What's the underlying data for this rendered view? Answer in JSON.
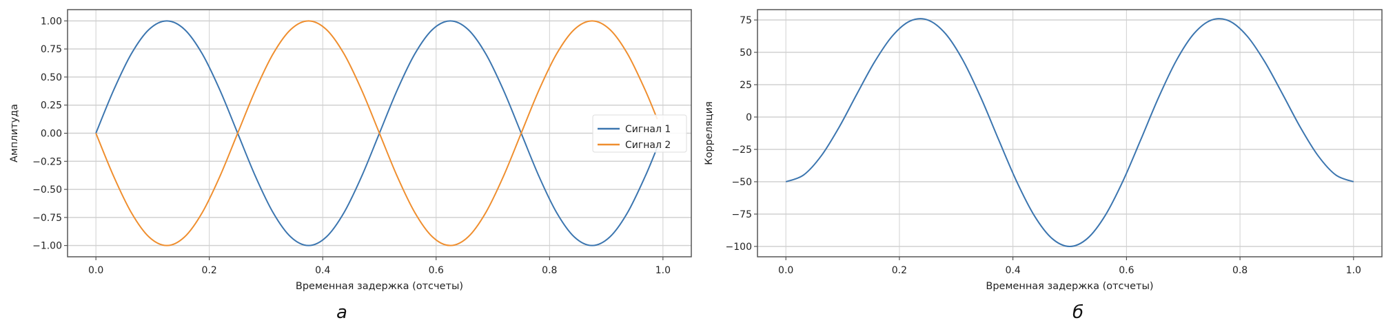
{
  "chart_data": [
    {
      "type": "line",
      "panel_label": "а",
      "xlabel": "Временная задержка (отсчеты)",
      "ylabel": "Амплитуда",
      "xlim": [
        -0.05,
        1.05
      ],
      "ylim": [
        -1.1,
        1.1
      ],
      "xticks": [
        "0.0",
        "0.2",
        "0.4",
        "0.6",
        "0.8",
        "1.0"
      ],
      "yticks": [
        "1.00",
        "0.75",
        "0.50",
        "0.25",
        "0.00",
        "−0.25",
        "−0.50",
        "−0.75",
        "−1.00"
      ],
      "grid": true,
      "legend_position": "right",
      "x": [
        0,
        0.03125,
        0.0625,
        0.09375,
        0.125,
        0.15625,
        0.1875,
        0.21875,
        0.25,
        0.28125,
        0.3125,
        0.34375,
        0.375,
        0.40625,
        0.4375,
        0.46875,
        0.5,
        0.53125,
        0.5625,
        0.59375,
        0.625,
        0.65625,
        0.6875,
        0.71875,
        0.75,
        0.78125,
        0.8125,
        0.84375,
        0.875,
        0.90625,
        0.9375,
        0.96875,
        0.99
      ],
      "series": [
        {
          "name": "Сигнал 1",
          "color": "#3b75af",
          "values": [
            0,
            0.383,
            0.707,
            0.924,
            1,
            0.924,
            0.707,
            0.383,
            0,
            -0.383,
            -0.707,
            -0.924,
            -1,
            -0.924,
            -0.707,
            -0.383,
            0,
            0.383,
            0.707,
            0.924,
            1,
            0.924,
            0.707,
            0.383,
            0,
            -0.383,
            -0.707,
            -0.924,
            -1,
            -0.924,
            -0.707,
            -0.383,
            -0.125
          ]
        },
        {
          "name": "Сигнал 2",
          "color": "#ef8e2e",
          "values": [
            0,
            -0.383,
            -0.707,
            -0.924,
            -1,
            -0.924,
            -0.707,
            -0.383,
            0,
            0.383,
            0.707,
            0.924,
            1,
            0.924,
            0.707,
            0.383,
            0,
            -0.383,
            -0.707,
            -0.924,
            -1,
            -0.924,
            -0.707,
            -0.383,
            0,
            0.383,
            0.707,
            0.924,
            1,
            0.924,
            0.707,
            0.383,
            0.125
          ]
        }
      ]
    },
    {
      "type": "line",
      "panel_label": "б",
      "xlabel": "Временная задержка (отсчеты)",
      "ylabel": "Корреляция",
      "xlim": [
        -0.05,
        1.05
      ],
      "ylim": [
        -108,
        83
      ],
      "xticks": [
        "0.0",
        "0.2",
        "0.4",
        "0.6",
        "0.8",
        "1.0"
      ],
      "yticks": [
        "75",
        "50",
        "25",
        "0",
        "−25",
        "−50",
        "−75",
        "−100"
      ],
      "grid": true,
      "x": [
        0,
        0.03125,
        0.0625,
        0.09375,
        0.125,
        0.15625,
        0.1875,
        0.21875,
        0.25,
        0.28125,
        0.3125,
        0.34375,
        0.375,
        0.40625,
        0.4375,
        0.46875,
        0.5,
        0.53125,
        0.5625,
        0.59375,
        0.625,
        0.65625,
        0.6875,
        0.71875,
        0.75,
        0.78125,
        0.8125,
        0.84375,
        0.875,
        0.90625,
        0.9375,
        0.96875,
        1
      ],
      "series": [
        {
          "color": "#3b75af",
          "values": [
            -50,
            -44.8,
            -29.9,
            -7.9,
            17.7,
            42.6,
            62.6,
            74.2,
            75,
            64.4,
            43.4,
            14.8,
            -17.7,
            -49.5,
            -76.1,
            -93.8,
            -100,
            -93.8,
            -76.1,
            -49.5,
            -17.7,
            14.8,
            43.4,
            64.4,
            75,
            74.2,
            62.6,
            42.6,
            17.7,
            -7.9,
            -29.9,
            -44.8,
            -50
          ]
        }
      ]
    }
  ]
}
